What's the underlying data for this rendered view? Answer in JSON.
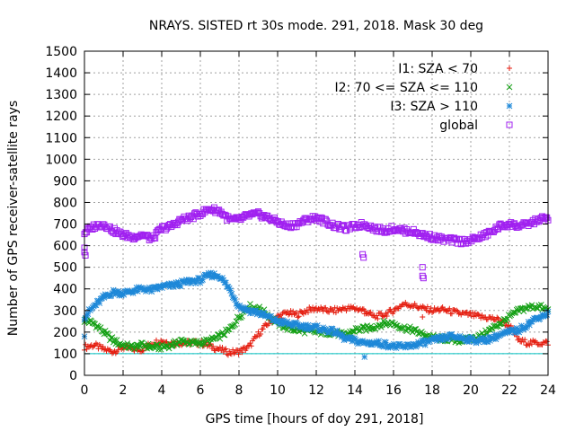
{
  "chart_data": {
    "type": "scatter",
    "title": "NRAYS. SISTED rt 30s mode. 291, 2018. Mask 30 deg",
    "xlabel": "GPS time [hours of doy 291, 2018]",
    "ylabel": "Number of GPS receiver-satellite rays",
    "xlim": [
      0,
      24
    ],
    "ylim": [
      0,
      1500
    ],
    "xticks": [
      "0",
      "2",
      "4",
      "6",
      "8",
      "10",
      "12",
      "14",
      "16",
      "18",
      "20",
      "22",
      "24"
    ],
    "yticks": [
      "0",
      "100",
      "200",
      "300",
      "400",
      "500",
      "600",
      "700",
      "800",
      "900",
      "1000",
      "1100",
      "1200",
      "1300",
      "1400",
      "1500"
    ],
    "grid": true,
    "legend_position": "top-right",
    "threshold_line": {
      "y": 100,
      "color": "#00c0c0"
    },
    "series": [
      {
        "name": "I1: SZA < 70",
        "marker": "+",
        "color": "#e51e10",
        "points": [
          [
            0,
            130
          ],
          [
            0.5,
            140
          ],
          [
            1,
            120
          ],
          [
            1.5,
            110
          ],
          [
            2,
            130
          ],
          [
            2.5,
            120
          ],
          [
            3,
            120
          ],
          [
            3.5,
            150
          ],
          [
            4,
            160
          ],
          [
            4.5,
            150
          ],
          [
            5,
            150
          ],
          [
            5.5,
            150
          ],
          [
            6,
            150
          ],
          [
            6.5,
            135
          ],
          [
            7,
            120
          ],
          [
            7.5,
            105
          ],
          [
            8,
            110
          ],
          [
            8.5,
            130
          ],
          [
            9,
            190
          ],
          [
            9.5,
            240
          ],
          [
            10,
            270
          ],
          [
            10.5,
            290
          ],
          [
            11,
            280
          ],
          [
            11.5,
            300
          ],
          [
            12,
            310
          ],
          [
            12.5,
            300
          ],
          [
            13,
            300
          ],
          [
            13.5,
            310
          ],
          [
            14,
            310
          ],
          [
            14.5,
            300
          ],
          [
            15,
            270
          ],
          [
            15.5,
            280
          ],
          [
            16,
            300
          ],
          [
            16.5,
            330
          ],
          [
            17,
            325
          ],
          [
            17.5,
            310
          ],
          [
            18,
            300
          ],
          [
            18.5,
            305
          ],
          [
            19,
            295
          ],
          [
            19.5,
            285
          ],
          [
            20,
            280
          ],
          [
            20.5,
            270
          ],
          [
            21,
            265
          ],
          [
            21.5,
            255
          ],
          [
            22,
            230
          ],
          [
            22.5,
            160
          ],
          [
            23,
            150
          ],
          [
            23.5,
            150
          ],
          [
            24,
            150
          ]
        ]
      },
      {
        "name": "I2: 70 <= SZA <= 110",
        "marker": "x",
        "color": "#15a015",
        "points": [
          [
            0,
            255
          ],
          [
            0.5,
            240
          ],
          [
            1,
            200
          ],
          [
            1.5,
            160
          ],
          [
            2,
            140
          ],
          [
            2.5,
            130
          ],
          [
            3,
            140
          ],
          [
            3.5,
            130
          ],
          [
            4,
            130
          ],
          [
            4.5,
            140
          ],
          [
            5,
            160
          ],
          [
            5.5,
            150
          ],
          [
            6,
            150
          ],
          [
            6.5,
            160
          ],
          [
            7,
            180
          ],
          [
            7.5,
            210
          ],
          [
            8,
            270
          ],
          [
            8.5,
            320
          ],
          [
            9,
            310
          ],
          [
            9.5,
            280
          ],
          [
            10,
            240
          ],
          [
            10.5,
            220
          ],
          [
            11,
            210
          ],
          [
            11.5,
            205
          ],
          [
            12,
            200
          ],
          [
            12.5,
            200
          ],
          [
            13,
            195
          ],
          [
            13.5,
            185
          ],
          [
            14,
            210
          ],
          [
            14.5,
            215
          ],
          [
            15,
            225
          ],
          [
            15.5,
            240
          ],
          [
            16,
            240
          ],
          [
            16.5,
            220
          ],
          [
            17,
            210
          ],
          [
            17.5,
            190
          ],
          [
            18,
            175
          ],
          [
            18.5,
            170
          ],
          [
            19,
            165
          ],
          [
            19.5,
            160
          ],
          [
            20,
            170
          ],
          [
            20.5,
            180
          ],
          [
            21,
            210
          ],
          [
            21.5,
            240
          ],
          [
            22,
            270
          ],
          [
            22.5,
            300
          ],
          [
            23,
            315
          ],
          [
            23.5,
            320
          ],
          [
            24,
            300
          ]
        ]
      },
      {
        "name": "I3: SZA > 110",
        "marker": "*",
        "color": "#1e88d8",
        "points": [
          [
            0,
            270
          ],
          [
            0.5,
            320
          ],
          [
            1,
            360
          ],
          [
            1.5,
            385
          ],
          [
            2,
            380
          ],
          [
            2.5,
            390
          ],
          [
            3,
            400
          ],
          [
            3.5,
            395
          ],
          [
            4,
            410
          ],
          [
            4.5,
            415
          ],
          [
            5,
            425
          ],
          [
            5.5,
            435
          ],
          [
            6,
            440
          ],
          [
            6.5,
            465
          ],
          [
            7,
            460
          ],
          [
            7.5,
            400
          ],
          [
            8,
            320
          ],
          [
            8.5,
            300
          ],
          [
            9,
            290
          ],
          [
            9.5,
            270
          ],
          [
            10,
            250
          ],
          [
            10.5,
            240
          ],
          [
            11,
            230
          ],
          [
            11.5,
            225
          ],
          [
            12,
            220
          ],
          [
            12.5,
            210
          ],
          [
            13,
            200
          ],
          [
            13.5,
            170
          ],
          [
            14,
            160
          ],
          [
            14.5,
            150
          ],
          [
            15,
            150
          ],
          [
            15.5,
            145
          ],
          [
            16,
            135
          ],
          [
            16.5,
            130
          ],
          [
            17,
            140
          ],
          [
            17.5,
            150
          ],
          [
            18,
            160
          ],
          [
            18.5,
            170
          ],
          [
            19,
            180
          ],
          [
            19.5,
            175
          ],
          [
            20,
            165
          ],
          [
            20.5,
            160
          ],
          [
            21,
            170
          ],
          [
            21.5,
            185
          ],
          [
            22,
            200
          ],
          [
            22.5,
            210
          ],
          [
            23,
            240
          ],
          [
            23.5,
            270
          ],
          [
            24,
            285
          ]
        ]
      },
      {
        "name": "global",
        "marker": "square",
        "color": "#a020f0",
        "points": [
          [
            0,
            660
          ],
          [
            0.5,
            690
          ],
          [
            1,
            700
          ],
          [
            1.5,
            670
          ],
          [
            2,
            650
          ],
          [
            2.5,
            640
          ],
          [
            3,
            650
          ],
          [
            3.5,
            630
          ],
          [
            4,
            680
          ],
          [
            4.5,
            690
          ],
          [
            5,
            720
          ],
          [
            5.5,
            730
          ],
          [
            6,
            750
          ],
          [
            6.5,
            770
          ],
          [
            7,
            760
          ],
          [
            7.5,
            720
          ],
          [
            8,
            720
          ],
          [
            8.5,
            740
          ],
          [
            9,
            745
          ],
          [
            9.5,
            730
          ],
          [
            10,
            710
          ],
          [
            10.5,
            690
          ],
          [
            11,
            700
          ],
          [
            11.5,
            720
          ],
          [
            12,
            730
          ],
          [
            12.5,
            710
          ],
          [
            13,
            690
          ],
          [
            13.5,
            680
          ],
          [
            14,
            690
          ],
          [
            14.5,
            700
          ],
          [
            15,
            680
          ],
          [
            15.5,
            670
          ],
          [
            16,
            680
          ],
          [
            16.5,
            670
          ],
          [
            17,
            665
          ],
          [
            17.5,
            650
          ],
          [
            18,
            640
          ],
          [
            18.5,
            630
          ],
          [
            19,
            625
          ],
          [
            19.5,
            620
          ],
          [
            20,
            625
          ],
          [
            20.5,
            640
          ],
          [
            21,
            660
          ],
          [
            21.5,
            690
          ],
          [
            22,
            700
          ],
          [
            22.5,
            690
          ],
          [
            23,
            700
          ],
          [
            23.5,
            720
          ],
          [
            24,
            730
          ]
        ]
      }
    ],
    "outliers": [
      {
        "series": "global",
        "points": [
          [
            0,
            590
          ],
          [
            0,
            570
          ],
          [
            0.05,
            555
          ],
          [
            14.4,
            560
          ],
          [
            14.45,
            545
          ],
          [
            17.5,
            500
          ],
          [
            17.5,
            460
          ],
          [
            17.55,
            450
          ]
        ]
      },
      {
        "series": "I3: SZA > 110",
        "points": [
          [
            0,
            180
          ],
          [
            14.5,
            85
          ]
        ]
      },
      {
        "series": "I1: SZA < 70",
        "points": [
          [
            14.5,
            285
          ],
          [
            17.5,
            270
          ]
        ]
      }
    ]
  }
}
